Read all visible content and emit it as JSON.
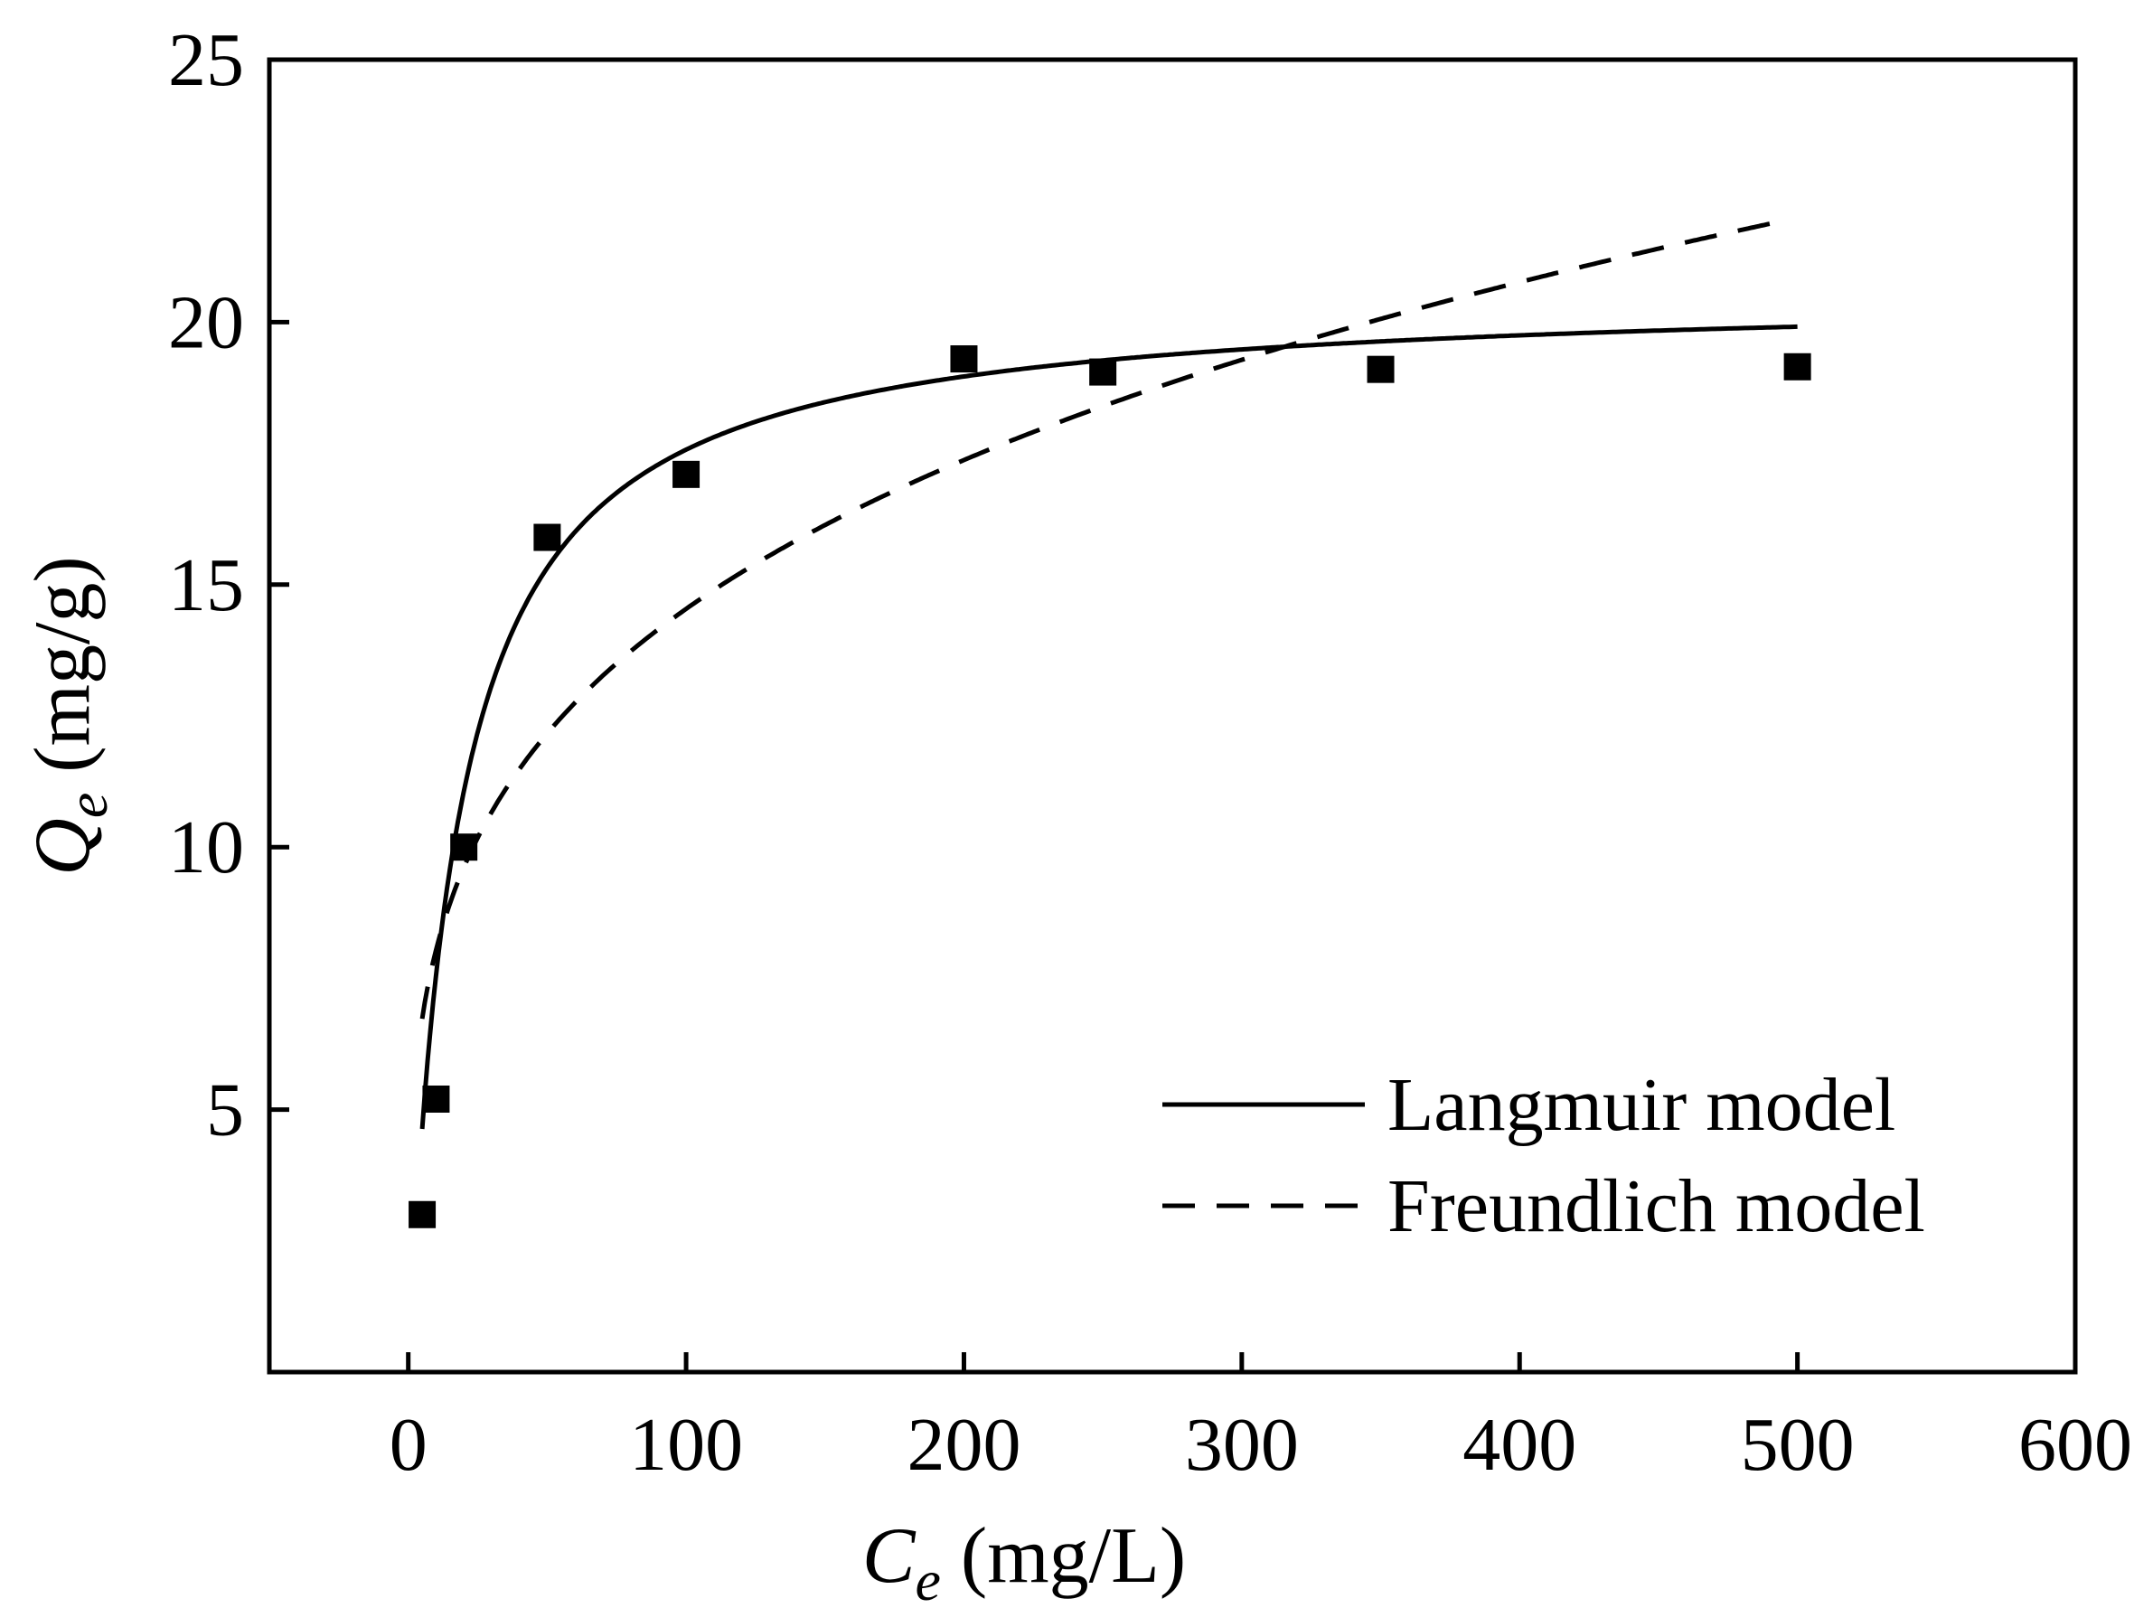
{
  "chart_data": {
    "type": "scatter",
    "xlabel": {
      "symbol": "C",
      "subscript": "e",
      "unit": " (mg/L)"
    },
    "ylabel": {
      "symbol": "Q",
      "subscript": "e",
      "unit": " (mg/g)"
    },
    "xlim": [
      -50,
      600
    ],
    "ylim": [
      0,
      25
    ],
    "x_ticks": [
      0,
      100,
      200,
      300,
      400,
      500,
      600
    ],
    "x_tick_labels": [
      "0",
      "100",
      "200",
      "300",
      "400",
      "500",
      "600"
    ],
    "y_ticks": [
      5,
      10,
      15,
      20,
      25
    ],
    "y_tick_labels": [
      "5",
      "10",
      "15",
      "20",
      "25"
    ],
    "grid": false,
    "legend_position": "bottom-right",
    "scatter": {
      "x": [
        5,
        10,
        20,
        50,
        100,
        200,
        250,
        350,
        500
      ],
      "y": [
        3.0,
        5.2,
        10.0,
        15.9,
        17.1,
        19.3,
        19.05,
        19.1,
        19.15
      ]
    },
    "series": [
      {
        "name": "Langmuir model",
        "style": "solid",
        "model": "langmuir",
        "params": {
          "qm": 20.6,
          "KL": 0.058
        },
        "x_range": [
          5,
          500
        ]
      },
      {
        "name": "Freundlich model",
        "style": "dashed",
        "model": "freundlich",
        "params": {
          "KF": 4.45,
          "n": 3.89
        },
        "x_range": [
          5,
          490
        ]
      }
    ]
  }
}
